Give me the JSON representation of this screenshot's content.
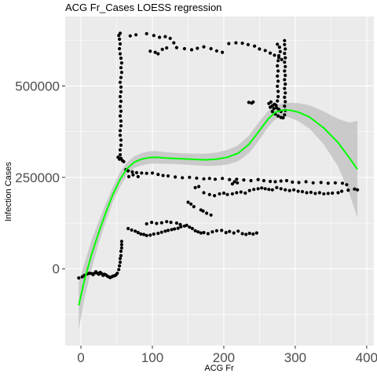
{
  "chart_data": {
    "type": "scatter",
    "title": "ACG Fr_Cases LOESS regression",
    "xlabel": "ACG Fr",
    "ylabel": "Infection Cases",
    "xlim": [
      -22,
      410
    ],
    "ylim": [
      -210000,
      690000
    ],
    "x_ticks": [
      0,
      100,
      200,
      300,
      400
    ],
    "x_tick_labels": [
      "0",
      "100",
      "200",
      "300",
      "400"
    ],
    "y_ticks": [
      0,
      250000,
      500000
    ],
    "y_tick_labels": [
      "0",
      "250000",
      "500000"
    ],
    "grid": true,
    "colors": {
      "panel": "#ebebeb",
      "grid_major": "#ffffff",
      "points": "#000000",
      "fit_line": "#00ff00",
      "ribbon": "#c4c4c4"
    },
    "points": [
      [
        -3,
        -25000
      ],
      [
        2,
        -22000
      ],
      [
        5,
        -18000
      ],
      [
        9,
        -14000
      ],
      [
        12,
        -12000
      ],
      [
        15,
        -13000
      ],
      [
        17,
        -16000
      ],
      [
        19,
        -12000
      ],
      [
        21,
        -8000
      ],
      [
        23,
        -12000
      ],
      [
        25,
        -15000
      ],
      [
        27,
        -10000
      ],
      [
        29,
        -13000
      ],
      [
        31,
        -18000
      ],
      [
        33,
        -15000
      ],
      [
        35,
        -17000
      ],
      [
        37,
        -20000
      ],
      [
        39,
        -22000
      ],
      [
        41,
        -24000
      ],
      [
        43,
        -22000
      ],
      [
        45,
        -20000
      ],
      [
        47,
        -19000
      ],
      [
        49,
        -17000
      ],
      [
        51,
        -12000
      ],
      [
        53,
        -2000
      ],
      [
        54,
        8000
      ],
      [
        55,
        18000
      ],
      [
        55,
        28000
      ],
      [
        56,
        36000
      ],
      [
        56,
        48000
      ],
      [
        57,
        57000
      ],
      [
        57,
        66000
      ],
      [
        57,
        75000
      ],
      [
        54,
        300000
      ],
      [
        55,
        312000
      ],
      [
        55,
        325000
      ],
      [
        56,
        338000
      ],
      [
        56,
        352000
      ],
      [
        55,
        365000
      ],
      [
        55,
        378000
      ],
      [
        56,
        391000
      ],
      [
        56,
        404000
      ],
      [
        55,
        418000
      ],
      [
        56,
        431000
      ],
      [
        55,
        444000
      ],
      [
        56,
        458000
      ],
      [
        55,
        471000
      ],
      [
        56,
        484000
      ],
      [
        56,
        497000
      ],
      [
        55,
        510000
      ],
      [
        56,
        523000
      ],
      [
        57,
        537000
      ],
      [
        56,
        550000
      ],
      [
        57,
        563000
      ],
      [
        56,
        576000
      ],
      [
        55,
        588000
      ],
      [
        54,
        602000
      ],
      [
        55,
        615000
      ],
      [
        54,
        628000
      ],
      [
        53,
        638000
      ],
      [
        55,
        644000
      ],
      [
        52,
        305000
      ],
      [
        56,
        302000
      ],
      [
        58,
        296000
      ],
      [
        60,
        293000
      ],
      [
        63,
        271000
      ],
      [
        66,
        268000
      ],
      [
        72,
        265000
      ],
      [
        78,
        263000
      ],
      [
        85,
        262000
      ],
      [
        92,
        261000
      ],
      [
        100,
        262000
      ],
      [
        108,
        258000
      ],
      [
        115,
        255000
      ],
      [
        122,
        254000
      ],
      [
        132,
        251000
      ],
      [
        142,
        249000
      ],
      [
        152,
        250000
      ],
      [
        162,
        248000
      ],
      [
        172,
        246000
      ],
      [
        180,
        247000
      ],
      [
        188,
        245000
      ],
      [
        198,
        247000
      ],
      [
        208,
        244000
      ],
      [
        218,
        245000
      ],
      [
        228,
        243000
      ],
      [
        238,
        241000
      ],
      [
        248,
        244000
      ],
      [
        256,
        241000
      ],
      [
        265,
        239000
      ],
      [
        272,
        238000
      ],
      [
        280,
        240000
      ],
      [
        288,
        241000
      ],
      [
        296,
        237000
      ],
      [
        305,
        236000
      ],
      [
        315,
        238000
      ],
      [
        325,
        235000
      ],
      [
        336,
        236000
      ],
      [
        346,
        234000
      ],
      [
        356,
        235000
      ],
      [
        366,
        234000
      ],
      [
        372,
        230000
      ],
      [
        67,
        252000
      ],
      [
        73,
        257000
      ],
      [
        80,
        252000
      ],
      [
        160,
        222000
      ],
      [
        165,
        225000
      ],
      [
        172,
        208000
      ],
      [
        180,
        203000
      ],
      [
        187,
        200000
      ],
      [
        194,
        205000
      ],
      [
        200,
        207000
      ],
      [
        205,
        203000
      ],
      [
        212,
        205000
      ],
      [
        218,
        208000
      ],
      [
        224,
        210000
      ],
      [
        230,
        207000
      ],
      [
        236,
        214000
      ],
      [
        242,
        217000
      ],
      [
        248,
        219000
      ],
      [
        253,
        221000
      ],
      [
        258,
        219000
      ],
      [
        263,
        217000
      ],
      [
        268,
        216000
      ],
      [
        274,
        222000
      ],
      [
        280,
        219000
      ],
      [
        286,
        216000
      ],
      [
        292,
        214000
      ],
      [
        298,
        216000
      ],
      [
        304,
        212000
      ],
      [
        310,
        211000
      ],
      [
        316,
        208000
      ],
      [
        322,
        209000
      ],
      [
        328,
        206000
      ],
      [
        334,
        208000
      ],
      [
        340,
        205000
      ],
      [
        346,
        206000
      ],
      [
        352,
        207000
      ],
      [
        360,
        208000
      ],
      [
        365,
        212000
      ],
      [
        374,
        215000
      ],
      [
        383,
        218000
      ],
      [
        387,
        216000
      ],
      [
        212,
        232000
      ],
      [
        215,
        238000
      ],
      [
        219,
        235000
      ],
      [
        150,
        182000
      ],
      [
        154,
        177000
      ],
      [
        158,
        170000
      ],
      [
        168,
        161000
      ],
      [
        171,
        158000
      ],
      [
        176,
        152000
      ],
      [
        182,
        147000
      ],
      [
        66,
        110000
      ],
      [
        71,
        106000
      ],
      [
        76,
        103000
      ],
      [
        80,
        99000
      ],
      [
        84,
        95000
      ],
      [
        88,
        94000
      ],
      [
        92,
        91000
      ],
      [
        97,
        92000
      ],
      [
        102,
        95000
      ],
      [
        108,
        97000
      ],
      [
        113,
        100000
      ],
      [
        118,
        103000
      ],
      [
        122,
        105000
      ],
      [
        127,
        107000
      ],
      [
        131,
        109000
      ],
      [
        136,
        111000
      ],
      [
        140,
        115000
      ],
      [
        145,
        117000
      ],
      [
        148,
        119000
      ],
      [
        152,
        114000
      ],
      [
        156,
        110000
      ],
      [
        160,
        104000
      ],
      [
        164,
        101000
      ],
      [
        168,
        98000
      ],
      [
        172,
        99000
      ],
      [
        178,
        96000
      ],
      [
        184,
        101000
      ],
      [
        190,
        104000
      ],
      [
        197,
        105000
      ],
      [
        203,
        99000
      ],
      [
        208,
        102000
      ],
      [
        214,
        98000
      ],
      [
        220,
        103000
      ],
      [
        226,
        96000
      ],
      [
        231,
        94000
      ],
      [
        236,
        97000
      ],
      [
        241,
        95000
      ],
      [
        246,
        98000
      ],
      [
        92,
        123000
      ],
      [
        99,
        127000
      ],
      [
        106,
        124000
      ],
      [
        113,
        126000
      ],
      [
        120,
        129000
      ],
      [
        126,
        127000
      ],
      [
        134,
        125000
      ],
      [
        139,
        121000
      ],
      [
        69,
        637000
      ],
      [
        77,
        640000
      ],
      [
        92,
        643000
      ],
      [
        102,
        638000
      ],
      [
        110,
        633000
      ],
      [
        118,
        635000
      ],
      [
        125,
        630000
      ],
      [
        130,
        618000
      ],
      [
        134,
        605000
      ],
      [
        145,
        602000
      ],
      [
        155,
        599000
      ],
      [
        163,
        603000
      ],
      [
        172,
        607000
      ],
      [
        182,
        602000
      ],
      [
        190,
        596000
      ],
      [
        198,
        592000
      ],
      [
        207,
        616000
      ],
      [
        217,
        618000
      ],
      [
        226,
        617000
      ],
      [
        234,
        613000
      ],
      [
        243,
        609000
      ],
      [
        250,
        601000
      ],
      [
        258,
        597000
      ],
      [
        265,
        590000
      ],
      [
        271,
        584000
      ],
      [
        277,
        578000
      ],
      [
        281,
        572000
      ],
      [
        97,
        595000
      ],
      [
        104,
        592000
      ],
      [
        108,
        588000
      ],
      [
        114,
        600000
      ],
      [
        120,
        604000
      ],
      [
        275,
        614000
      ],
      [
        278,
        606000
      ],
      [
        279,
        594000
      ],
      [
        277,
        583000
      ],
      [
        276,
        569000
      ],
      [
        275,
        555000
      ],
      [
        276,
        541000
      ],
      [
        275,
        527000
      ],
      [
        276,
        513000
      ],
      [
        275,
        499000
      ],
      [
        276,
        485000
      ],
      [
        276,
        471000
      ],
      [
        275,
        459000
      ],
      [
        273,
        447000
      ],
      [
        270,
        438000
      ],
      [
        268,
        430000
      ],
      [
        272,
        423000
      ],
      [
        276,
        418000
      ],
      [
        280,
        414000
      ],
      [
        283,
        413000
      ],
      [
        285,
        421000
      ],
      [
        286,
        433000
      ],
      [
        285,
        445000
      ],
      [
        286,
        457000
      ],
      [
        285,
        469000
      ],
      [
        286,
        481000
      ],
      [
        285,
        493000
      ],
      [
        286,
        505000
      ],
      [
        285,
        517000
      ],
      [
        286,
        529000
      ],
      [
        285,
        541000
      ],
      [
        286,
        553000
      ],
      [
        285,
        565000
      ],
      [
        286,
        577000
      ],
      [
        285,
        589000
      ],
      [
        286,
        601000
      ],
      [
        285,
        613000
      ],
      [
        285,
        624000
      ],
      [
        265,
        442000
      ],
      [
        268,
        446000
      ],
      [
        271,
        450000
      ],
      [
        274,
        440000
      ],
      [
        277,
        436000
      ],
      [
        280,
        430000
      ],
      [
        263,
        452000
      ],
      [
        266,
        456000
      ],
      [
        235,
        455000
      ],
      [
        239,
        453000
      ],
      [
        241,
        456000
      ]
    ],
    "loess_fit": [
      [
        -3,
        -100000
      ],
      [
        5,
        -30000
      ],
      [
        15,
        40000
      ],
      [
        25,
        100000
      ],
      [
        35,
        155000
      ],
      [
        45,
        205000
      ],
      [
        55,
        245000
      ],
      [
        65,
        275000
      ],
      [
        75,
        292000
      ],
      [
        85,
        300000
      ],
      [
        95,
        304000
      ],
      [
        105,
        305000
      ],
      [
        120,
        303000
      ],
      [
        140,
        301000
      ],
      [
        160,
        299000
      ],
      [
        175,
        298000
      ],
      [
        190,
        300000
      ],
      [
        205,
        305000
      ],
      [
        220,
        316000
      ],
      [
        235,
        340000
      ],
      [
        250,
        378000
      ],
      [
        262,
        410000
      ],
      [
        272,
        428000
      ],
      [
        282,
        434000
      ],
      [
        292,
        434000
      ],
      [
        305,
        428000
      ],
      [
        320,
        415000
      ],
      [
        340,
        385000
      ],
      [
        360,
        345000
      ],
      [
        375,
        305000
      ],
      [
        387,
        272000
      ]
    ],
    "loess_band": [
      [
        -3,
        -165000,
        -35000
      ],
      [
        5,
        -80000,
        15000
      ],
      [
        15,
        0,
        80000
      ],
      [
        25,
        70000,
        130000
      ],
      [
        35,
        130000,
        180000
      ],
      [
        45,
        185000,
        225000
      ],
      [
        55,
        225000,
        265000
      ],
      [
        65,
        258000,
        292000
      ],
      [
        75,
        276000,
        308000
      ],
      [
        85,
        283000,
        317000
      ],
      [
        95,
        287000,
        321000
      ],
      [
        105,
        288000,
        322000
      ],
      [
        120,
        287000,
        319000
      ],
      [
        140,
        286000,
        316000
      ],
      [
        160,
        283000,
        315000
      ],
      [
        175,
        281000,
        315000
      ],
      [
        190,
        282000,
        318000
      ],
      [
        205,
        285000,
        325000
      ],
      [
        220,
        294000,
        338000
      ],
      [
        235,
        316000,
        364000
      ],
      [
        250,
        353000,
        403000
      ],
      [
        262,
        388000,
        432000
      ],
      [
        272,
        409000,
        447000
      ],
      [
        282,
        416000,
        452000
      ],
      [
        292,
        414000,
        454000
      ],
      [
        305,
        403000,
        453000
      ],
      [
        320,
        383000,
        447000
      ],
      [
        340,
        340000,
        430000
      ],
      [
        360,
        280000,
        410000
      ],
      [
        375,
        210000,
        400000
      ],
      [
        387,
        140000,
        405000
      ]
    ]
  }
}
